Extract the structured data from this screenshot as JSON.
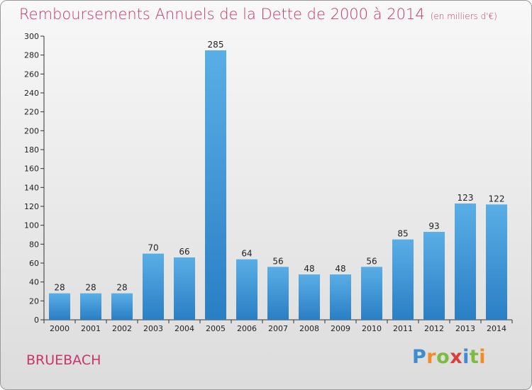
{
  "title": "Remboursements Annuels de la Dette de 2000 à 2014",
  "unit_note": "(en milliers d'€)",
  "commune": "BRUEBACH",
  "logo": {
    "text": "Proxiti",
    "p": "P",
    "r": "r",
    "o": "o",
    "x": "x",
    "i1": "i",
    "t": "t",
    "i2": "i"
  },
  "colors": {
    "title": "#c8366a",
    "bar_top": "#5aaee6",
    "bar_bottom": "#2a7ec4"
  },
  "chart_data": {
    "type": "bar",
    "title": "Remboursements Annuels de la Dette de 2000 à 2014",
    "xlabel": "",
    "ylabel": "",
    "categories": [
      "2000",
      "2001",
      "2002",
      "2003",
      "2004",
      "2005",
      "2006",
      "2007",
      "2008",
      "2009",
      "2010",
      "2011",
      "2012",
      "2013",
      "2014"
    ],
    "values": [
      28,
      28,
      28,
      70,
      66,
      285,
      64,
      56,
      48,
      48,
      56,
      85,
      93,
      123,
      122
    ],
    "ylim": [
      0,
      300
    ],
    "yticks": [
      0,
      20,
      40,
      60,
      80,
      100,
      120,
      140,
      160,
      180,
      200,
      220,
      240,
      260,
      280,
      300
    ],
    "grid": false,
    "data_labels": true
  }
}
